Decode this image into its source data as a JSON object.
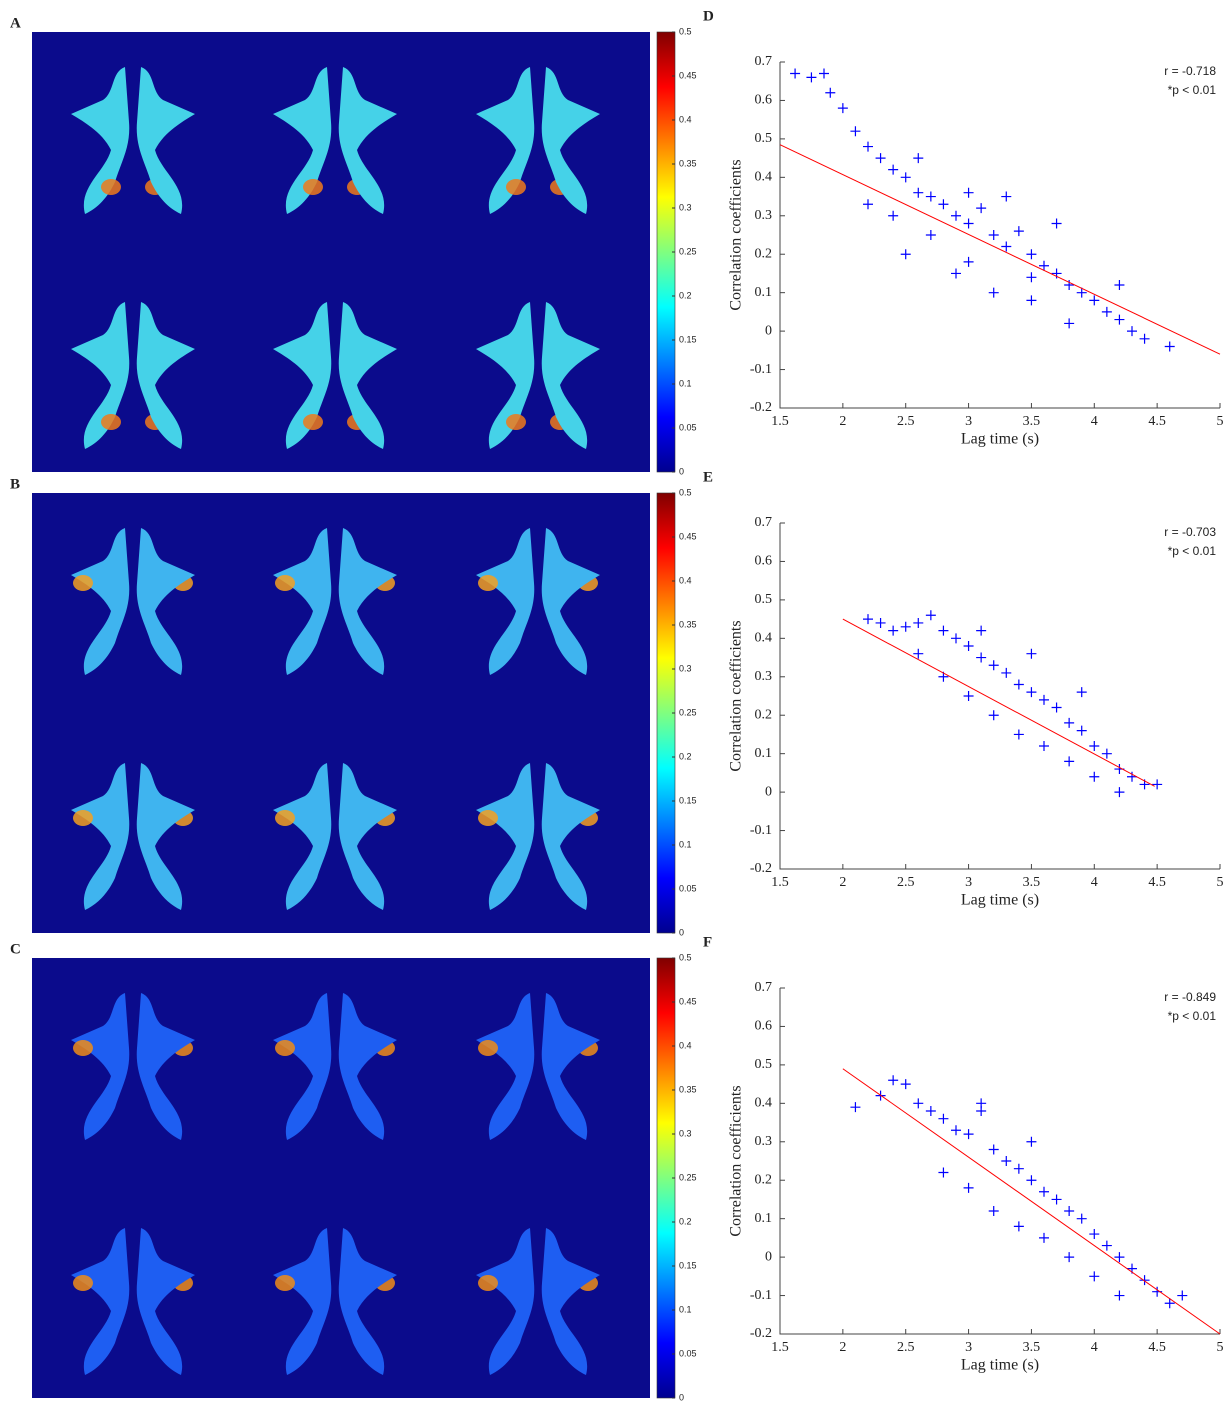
{
  "chart_data": [
    {
      "type": "image",
      "label": "A",
      "colormap": "jet",
      "background": "#0b0b8c",
      "clim": [
        0,
        0.5
      ],
      "cticks": [
        0,
        0.05,
        0.1,
        0.15,
        0.2,
        0.25,
        0.3,
        0.35,
        0.4,
        0.45,
        0.5
      ]
    },
    {
      "type": "image",
      "label": "B",
      "colormap": "jet",
      "background": "#0b0b8c",
      "clim": [
        0,
        0.5
      ],
      "cticks": [
        0,
        0.05,
        0.1,
        0.15,
        0.2,
        0.25,
        0.3,
        0.35,
        0.4,
        0.45,
        0.5
      ]
    },
    {
      "type": "image",
      "label": "C",
      "colormap": "jet",
      "background": "#0b0b8c",
      "clim": [
        0,
        0.5
      ],
      "cticks": [
        0,
        0.05,
        0.1,
        0.15,
        0.2,
        0.25,
        0.3,
        0.35,
        0.4,
        0.45,
        0.5
      ]
    },
    {
      "type": "scatter",
      "label": "D",
      "xlabel": "Lag time (s)",
      "ylabel": "Correlation coefficients",
      "annotations": [
        "r = -0.718",
        "*p < 0.01"
      ],
      "xlim": [
        1.5,
        5
      ],
      "ylim": [
        -0.2,
        0.7
      ],
      "xticks": [
        1.5,
        2,
        2.5,
        3,
        3.5,
        4,
        4.5,
        5
      ],
      "yticks": [
        -0.2,
        -0.1,
        0,
        0.1,
        0.2,
        0.3,
        0.4,
        0.5,
        0.6,
        0.7
      ],
      "color": "#0000ff",
      "marker": "+",
      "x": [
        1.62,
        1.75,
        1.85,
        1.9,
        2.0,
        2.1,
        2.2,
        2.3,
        2.4,
        2.5,
        2.6,
        2.7,
        2.8,
        2.9,
        3.0,
        3.1,
        3.2,
        3.3,
        3.4,
        3.5,
        3.6,
        3.7,
        3.8,
        3.9,
        4.0,
        4.1,
        4.2,
        4.3,
        4.4,
        4.6,
        2.5,
        2.9,
        3.2,
        3.5,
        3.8,
        2.4,
        2.7,
        3.0,
        3.3,
        3.7,
        4.2,
        3.0,
        3.5,
        2.6,
        2.2
      ],
      "y": [
        0.67,
        0.66,
        0.67,
        0.62,
        0.58,
        0.52,
        0.48,
        0.45,
        0.42,
        0.4,
        0.36,
        0.35,
        0.33,
        0.3,
        0.28,
        0.32,
        0.25,
        0.22,
        0.26,
        0.2,
        0.17,
        0.15,
        0.12,
        0.1,
        0.08,
        0.05,
        0.03,
        0.0,
        -0.02,
        -0.04,
        0.2,
        0.15,
        0.1,
        0.08,
        0.02,
        0.3,
        0.25,
        0.36,
        0.35,
        0.28,
        0.12,
        0.18,
        0.14,
        0.45,
        0.33
      ],
      "fit": {
        "color": "#ff0000",
        "x": [
          1.5,
          5
        ],
        "y": [
          0.485,
          -0.06
        ]
      }
    },
    {
      "type": "scatter",
      "label": "E",
      "xlabel": "Lag time (s)",
      "ylabel": "Correlation coefficients",
      "annotations": [
        "r = -0.703",
        "*p < 0.01"
      ],
      "xlim": [
        1.5,
        5
      ],
      "ylim": [
        -0.2,
        0.7
      ],
      "xticks": [
        1.5,
        2,
        2.5,
        3,
        3.5,
        4,
        4.5,
        5
      ],
      "yticks": [
        -0.2,
        -0.1,
        0,
        0.1,
        0.2,
        0.3,
        0.4,
        0.5,
        0.6,
        0.7
      ],
      "color": "#0000ff",
      "marker": "+",
      "x": [
        2.2,
        2.3,
        2.4,
        2.5,
        2.6,
        2.7,
        2.8,
        2.9,
        3.0,
        3.1,
        3.2,
        3.3,
        3.4,
        3.5,
        3.6,
        3.7,
        3.8,
        3.9,
        4.0,
        4.1,
        4.2,
        4.3,
        4.4,
        4.5,
        2.8,
        3.0,
        3.2,
        3.4,
        3.6,
        3.8,
        4.0,
        2.6,
        3.1,
        3.5,
        3.9,
        4.2
      ],
      "y": [
        0.45,
        0.44,
        0.42,
        0.43,
        0.44,
        0.46,
        0.42,
        0.4,
        0.38,
        0.35,
        0.33,
        0.31,
        0.28,
        0.26,
        0.24,
        0.22,
        0.18,
        0.16,
        0.12,
        0.1,
        0.06,
        0.04,
        0.02,
        0.02,
        0.3,
        0.25,
        0.2,
        0.15,
        0.12,
        0.08,
        0.04,
        0.36,
        0.42,
        0.36,
        0.26,
        0.0
      ],
      "fit": {
        "color": "#ff0000",
        "x": [
          2,
          4.48
        ],
        "y": [
          0.45,
          0.015
        ]
      }
    },
    {
      "type": "scatter",
      "label": "F",
      "xlabel": "Lag time (s)",
      "ylabel": "Correlation coefficients",
      "annotations": [
        "r = -0.849",
        "*p < 0.01"
      ],
      "xlim": [
        1.5,
        5
      ],
      "ylim": [
        -0.2,
        0.7
      ],
      "xticks": [
        1.5,
        2,
        2.5,
        3,
        3.5,
        4,
        4.5,
        5
      ],
      "yticks": [
        -0.2,
        -0.1,
        0,
        0.1,
        0.2,
        0.3,
        0.4,
        0.5,
        0.6,
        0.7
      ],
      "color": "#0000ff",
      "marker": "+",
      "x": [
        2.1,
        2.3,
        2.4,
        2.5,
        2.6,
        2.7,
        2.8,
        2.9,
        3.0,
        3.1,
        3.2,
        3.3,
        3.4,
        3.5,
        3.6,
        3.7,
        3.8,
        3.9,
        4.0,
        4.1,
        4.2,
        4.3,
        4.4,
        4.5,
        4.6,
        4.7,
        2.8,
        3.0,
        3.2,
        3.4,
        3.6,
        3.8,
        4.0,
        4.2,
        3.1,
        3.5
      ],
      "y": [
        0.39,
        0.42,
        0.46,
        0.45,
        0.4,
        0.38,
        0.36,
        0.33,
        0.32,
        0.4,
        0.28,
        0.25,
        0.23,
        0.2,
        0.17,
        0.15,
        0.12,
        0.1,
        0.06,
        0.03,
        0.0,
        -0.03,
        -0.06,
        -0.09,
        -0.12,
        -0.1,
        0.22,
        0.18,
        0.12,
        0.08,
        0.05,
        0.0,
        -0.05,
        -0.1,
        0.38,
        0.3
      ],
      "fit": {
        "color": "#ff0000",
        "x": [
          2,
          5
        ],
        "y": [
          0.49,
          -0.2
        ]
      }
    }
  ]
}
